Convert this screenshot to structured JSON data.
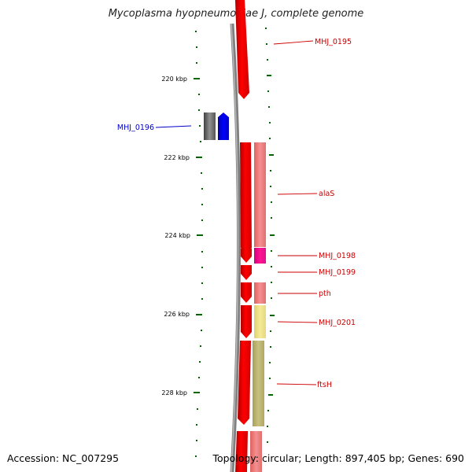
{
  "title": "Mycoplasma hyopneumoniae J, complete genome",
  "accession": "Accession: NC_007295",
  "summary": "Topology: circular; Length: 897,405 bp; Genes: 690",
  "scale_labels": [
    "220 kbp",
    "222 kbp",
    "224 kbp",
    "226 kbp",
    "228 kbp"
  ],
  "genes": [
    {
      "name": "MHJ_0195",
      "color": "#cc0000"
    },
    {
      "name": "MHJ_0196",
      "color": "#0000cc"
    },
    {
      "name": "alaS",
      "color": "#cc0000"
    },
    {
      "name": "MHJ_0198",
      "color": "#cc0000"
    },
    {
      "name": "MHJ_0199",
      "color": "#cc0000"
    },
    {
      "name": "pth",
      "color": "#cc0000"
    },
    {
      "name": "MHJ_0201",
      "color": "#cc0000"
    },
    {
      "name": "ftsH",
      "color": "#cc0000"
    }
  ],
  "colors": {
    "backbone": "#808080",
    "forward_gene": "#ff0000",
    "reverse_gene": "#0000ff",
    "cog_gene": "#f08080",
    "cog_magenta": "#ff1493",
    "cog_yellow": "#f0e68c",
    "cog_olive": "#bdb76b",
    "tick": "#006400"
  }
}
